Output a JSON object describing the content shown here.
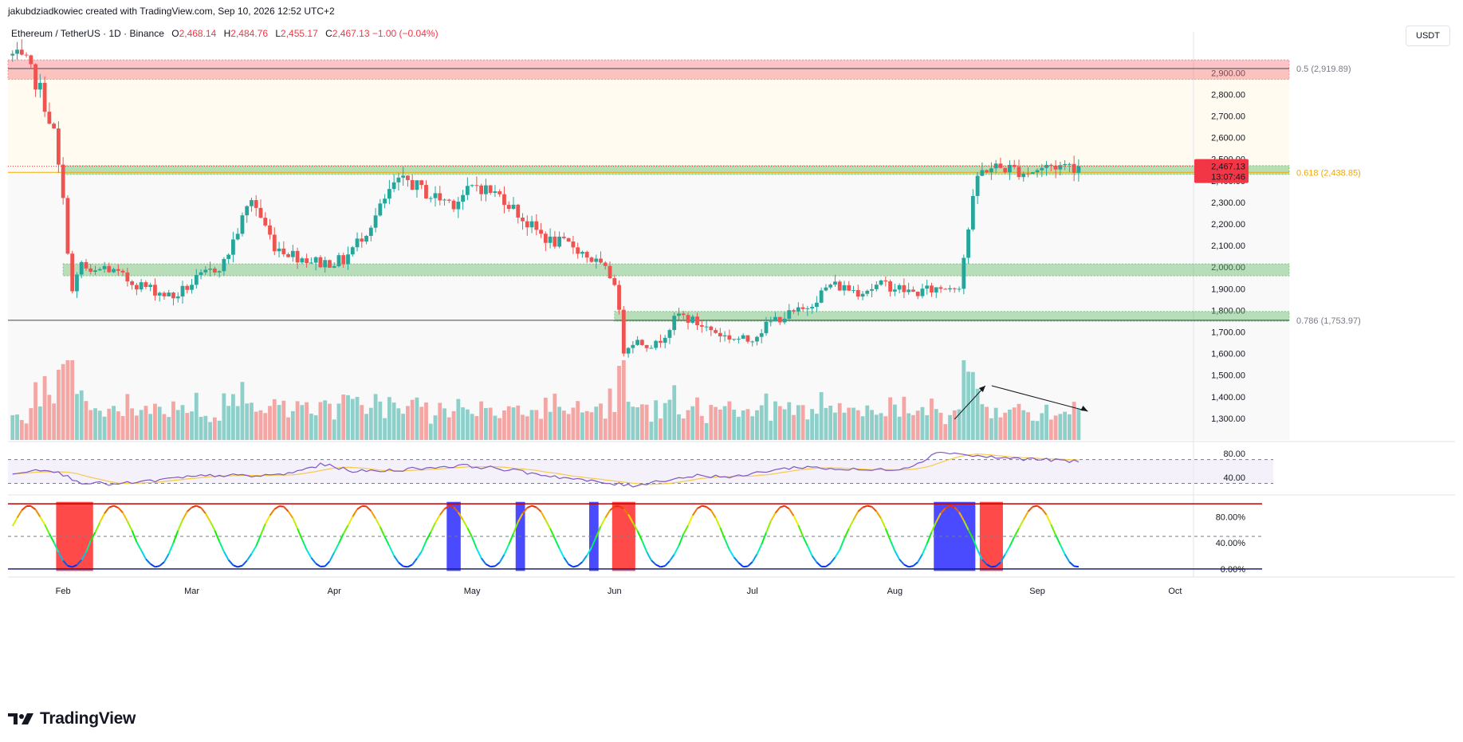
{
  "credit": "jakubdziadkowiec created with TradingView.com, Sep 10, 2026 12:52 UTC+2",
  "legend": {
    "symbol": "Ethereum / TetherUS · 1D · Binance",
    "o_label": "O",
    "o": "2,468.14",
    "h_label": "H",
    "h": "2,484.76",
    "l_label": "L",
    "l": "2,455.17",
    "c_label": "C",
    "c": "2,467.13",
    "change": "−1.00 (−0.04%)"
  },
  "unit_button": "USDT",
  "brand": "TradingView",
  "price_tag": {
    "price": "2,467.13",
    "countdown": "13:07:46"
  },
  "colors": {
    "up": "#26a69a",
    "down": "#ef5350",
    "fib": "#f2a900",
    "resist": "#f77c80",
    "support": "#66bb6a"
  },
  "chart_data": [
    {
      "type": "candlestick",
      "title": "Ethereum / TetherUS · 1D · Binance",
      "ylim": [
        1200,
        3060
      ],
      "y_ticks": [
        1300,
        1400,
        1500,
        1600,
        1700,
        1800,
        1900,
        2000,
        2100,
        2200,
        2300,
        2400,
        2500,
        2600,
        2700,
        2800,
        2900
      ],
      "y_tick_labels": [
        "1,300.00",
        "1,400.00",
        "1,500.00",
        "1,600.00",
        "1,700.00",
        "1,800.00",
        "1,900.00",
        "2,000.00",
        "2,100.00",
        "2,200.00",
        "2,300.00",
        "2,400.00",
        "2,500.00",
        "2,600.00",
        "2,700.00",
        "2,800.00",
        "2,900.00"
      ],
      "x_labels": [
        "Feb",
        "Mar",
        "Apr",
        "May",
        "Jun",
        "Jul",
        "Aug",
        "Sep",
        "Oct"
      ],
      "x_label_dates": [
        "2026-02-01",
        "2026-03-01",
        "2026-04-01",
        "2026-05-01",
        "2026-06-01",
        "2026-07-01",
        "2026-08-01",
        "2026-09-01",
        "2026-10-01"
      ],
      "x_range": [
        "2026-01-20",
        "2026-10-05"
      ],
      "series_anchors": {
        "dates": [
          "2026-01-21",
          "2026-01-24",
          "2026-01-27",
          "2026-01-30",
          "2026-02-01",
          "2026-02-03",
          "2026-02-05",
          "2026-02-07",
          "2026-02-10",
          "2026-02-15",
          "2026-02-20",
          "2026-02-25",
          "2026-03-02",
          "2026-03-08",
          "2026-03-14",
          "2026-03-19",
          "2026-03-24",
          "2026-03-29",
          "2026-04-03",
          "2026-04-09",
          "2026-04-14",
          "2026-04-17",
          "2026-04-22",
          "2026-04-27",
          "2026-05-02",
          "2026-05-08",
          "2026-05-13",
          "2026-05-18",
          "2026-05-23",
          "2026-05-28",
          "2026-06-01",
          "2026-06-03",
          "2026-06-05",
          "2026-06-10",
          "2026-06-15",
          "2026-06-20",
          "2026-06-25",
          "2026-06-30",
          "2026-07-06",
          "2026-07-12",
          "2026-07-18",
          "2026-07-24",
          "2026-07-30",
          "2026-08-05",
          "2026-08-10",
          "2026-08-15",
          "2026-08-17",
          "2026-08-19",
          "2026-08-21",
          "2026-08-25",
          "2026-08-30",
          "2026-09-04",
          "2026-09-08",
          "2026-09-10"
        ],
        "close": [
          2980,
          2940,
          2820,
          2620,
          2300,
          1880,
          2020,
          1960,
          2000,
          1940,
          1900,
          1860,
          1940,
          2020,
          2320,
          2100,
          2050,
          2020,
          2030,
          2200,
          2380,
          2400,
          2330,
          2300,
          2380,
          2320,
          2200,
          2120,
          2100,
          2020,
          1940,
          1620,
          1660,
          1640,
          1780,
          1730,
          1680,
          1660,
          1760,
          1800,
          1920,
          1890,
          1920,
          1880,
          1900,
          1920,
          2180,
          2420,
          2460,
          2460,
          2440,
          2470,
          2470,
          2467.13
        ]
      },
      "last_close": 2467.13,
      "zones": [
        {
          "name": "resistance",
          "from": 2870,
          "to": 2960,
          "start": "2026-01-20"
        },
        {
          "name": "support",
          "from": 2430,
          "to": 2470,
          "start": "2026-02-01"
        },
        {
          "name": "support",
          "from": 1960,
          "to": 2015,
          "start": "2026-02-01"
        },
        {
          "name": "support",
          "from": 1750,
          "to": 1795,
          "start": "2026-06-01"
        }
      ],
      "fib_levels": [
        {
          "label": "0.5 (2,919.89)",
          "value": 2919.89
        },
        {
          "label": "0.618 (2,438.85)",
          "value": 2438.85
        },
        {
          "label": "0.786 (1,753.97)",
          "value": 1753.97
        }
      ],
      "horizontal_lines": [
        2919.89,
        1753.97
      ]
    },
    {
      "type": "bar",
      "name": "Volume",
      "note_arrows": "volume rising then declining"
    },
    {
      "type": "line",
      "name": "RSI",
      "ylim": [
        20,
        95
      ],
      "y_ticks": [
        40,
        80
      ],
      "y_tick_labels": [
        "40.00",
        "80.00"
      ],
      "bands": [
        30,
        70
      ],
      "anchors_values": [
        48,
        55,
        32,
        28,
        34,
        40,
        44,
        42,
        46,
        62,
        50,
        52,
        56,
        60,
        56,
        48,
        40,
        32,
        26,
        36,
        44,
        40,
        52,
        58,
        54,
        52,
        56,
        84,
        76,
        72,
        70,
        66
      ]
    },
    {
      "type": "line",
      "name": "Stochastic",
      "ylim": [
        -5,
        110
      ],
      "y_ticks": [
        0,
        40,
        80
      ],
      "y_tick_labels": [
        "0.00%",
        "40.00%",
        "80.00%"
      ],
      "upper_band": 100,
      "mid_band": 50,
      "highlights": [
        {
          "kind": "overbought",
          "start": "2026-01-31",
          "end": "2026-02-07"
        },
        {
          "kind": "oversold",
          "start": "2026-04-26",
          "end": "2026-04-28"
        },
        {
          "kind": "oversold",
          "start": "2026-05-11",
          "end": "2026-05-12"
        },
        {
          "kind": "oversold",
          "start": "2026-05-27",
          "end": "2026-05-28"
        },
        {
          "kind": "overbought",
          "start": "2026-06-01",
          "end": "2026-06-05"
        },
        {
          "kind": "oversold",
          "start": "2026-08-10",
          "end": "2026-08-18"
        },
        {
          "kind": "overbought",
          "start": "2026-08-20",
          "end": "2026-08-24"
        }
      ]
    }
  ]
}
